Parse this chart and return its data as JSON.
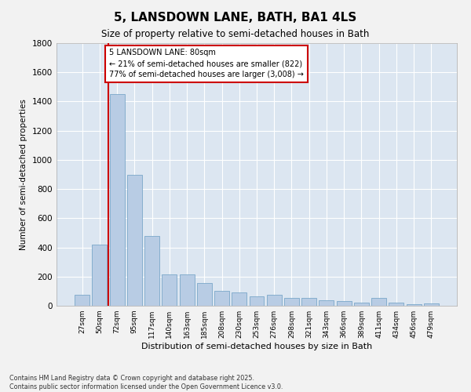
{
  "title": "5, LANSDOWN LANE, BATH, BA1 4LS",
  "subtitle": "Size of property relative to semi-detached houses in Bath",
  "xlabel": "Distribution of semi-detached houses by size in Bath",
  "ylabel": "Number of semi-detached properties",
  "categories": [
    "27sqm",
    "50sqm",
    "72sqm",
    "95sqm",
    "117sqm",
    "140sqm",
    "163sqm",
    "185sqm",
    "208sqm",
    "230sqm",
    "253sqm",
    "276sqm",
    "298sqm",
    "321sqm",
    "343sqm",
    "366sqm",
    "389sqm",
    "411sqm",
    "434sqm",
    "456sqm",
    "479sqm"
  ],
  "values": [
    75,
    420,
    1450,
    900,
    480,
    215,
    215,
    155,
    100,
    90,
    65,
    75,
    55,
    55,
    40,
    30,
    20,
    55,
    20,
    10,
    15
  ],
  "bar_color": "#b8cce4",
  "bar_edge_color": "#7ba7c9",
  "property_line_color": "#cc0000",
  "annotation_text": "5 LANSDOWN LANE: 80sqm\n← 21% of semi-detached houses are smaller (822)\n77% of semi-detached houses are larger (3,008) →",
  "annotation_box_color": "#cc0000",
  "ylim": [
    0,
    1800
  ],
  "yticks": [
    0,
    200,
    400,
    600,
    800,
    1000,
    1200,
    1400,
    1600,
    1800
  ],
  "background_color": "#dce6f1",
  "fig_background": "#f2f2f2",
  "grid_color": "#ffffff",
  "footer_line1": "Contains HM Land Registry data © Crown copyright and database right 2025.",
  "footer_line2": "Contains public sector information licensed under the Open Government Licence v3.0.",
  "red_line_x": 1.5
}
